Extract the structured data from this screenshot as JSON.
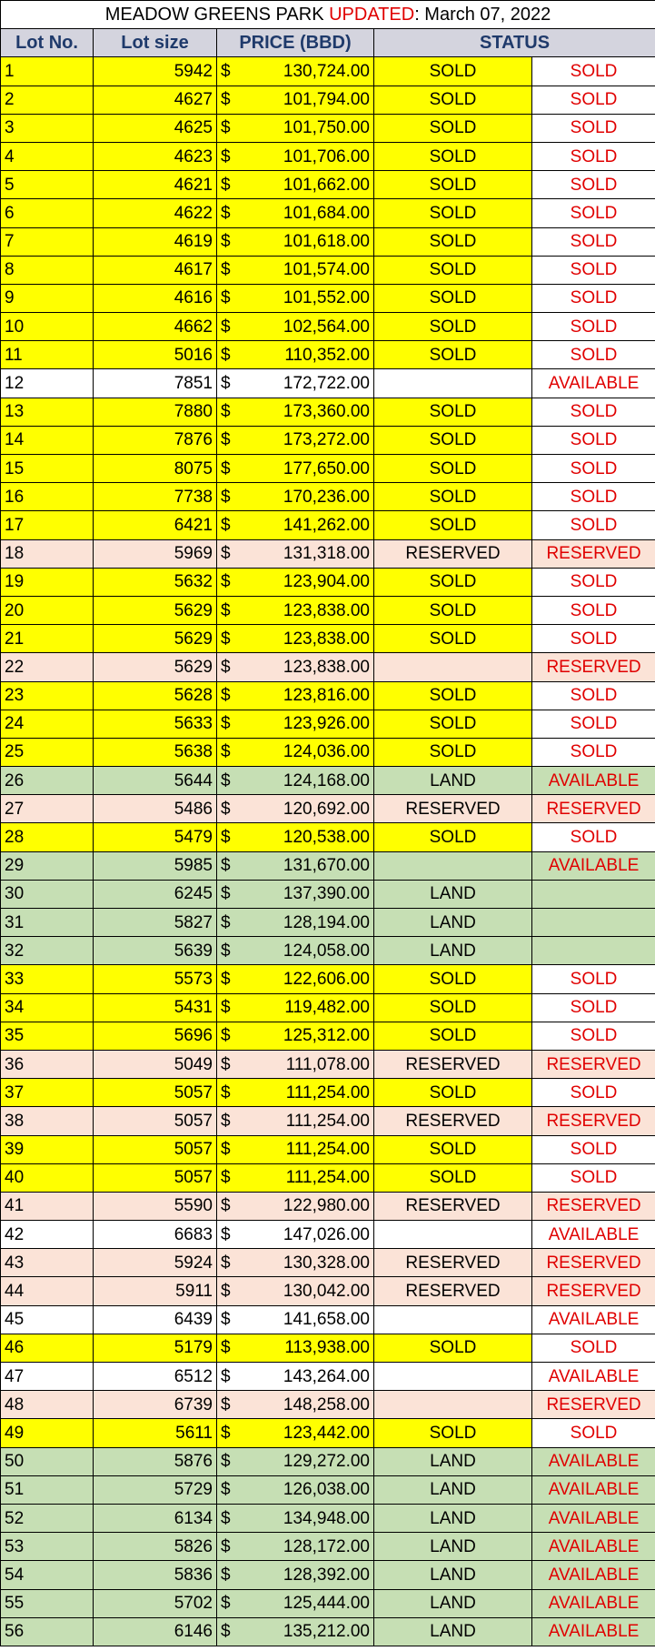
{
  "title": {
    "prefix": "MEADOW GREENS PARK ",
    "updated_word": "UPDATED",
    "suffix": ": March 07, 2022"
  },
  "headers": {
    "lot_no": "Lot No.",
    "lot_size": "Lot size",
    "price": "PRICE (BBD)",
    "status": "STATUS"
  },
  "currency_symbol": "$",
  "colors": {
    "sold_yellow": "#ffff00",
    "reserved_pink": "#fbe3d7",
    "land_green": "#c6dfb4",
    "available_white": "#ffffff",
    "status_red": "#e00000",
    "header_gray": "#d4d4de",
    "header_text_navy": "#1f3a6b"
  },
  "rows": [
    {
      "lot": "1",
      "size": "5942",
      "price": "130,724.00",
      "status": "SOLD",
      "status2": "SOLD",
      "c1": "y",
      "c2": "w"
    },
    {
      "lot": "2",
      "size": "4627",
      "price": "101,794.00",
      "status": "SOLD",
      "status2": "SOLD",
      "c1": "y",
      "c2": "w"
    },
    {
      "lot": "3",
      "size": "4625",
      "price": "101,750.00",
      "status": "SOLD",
      "status2": "SOLD",
      "c1": "y",
      "c2": "w"
    },
    {
      "lot": "4",
      "size": "4623",
      "price": "101,706.00",
      "status": "SOLD",
      "status2": "SOLD",
      "c1": "y",
      "c2": "w"
    },
    {
      "lot": "5",
      "size": "4621",
      "price": "101,662.00",
      "status": "SOLD",
      "status2": "SOLD",
      "c1": "y",
      "c2": "w"
    },
    {
      "lot": "6",
      "size": "4622",
      "price": "101,684.00",
      "status": "SOLD",
      "status2": "SOLD",
      "c1": "y",
      "c2": "w"
    },
    {
      "lot": "7",
      "size": "4619",
      "price": "101,618.00",
      "status": "SOLD",
      "status2": "SOLD",
      "c1": "y",
      "c2": "w"
    },
    {
      "lot": "8",
      "size": "4617",
      "price": "101,574.00",
      "status": "SOLD",
      "status2": "SOLD",
      "c1": "y",
      "c2": "w"
    },
    {
      "lot": "9",
      "size": "4616",
      "price": "101,552.00",
      "status": "SOLD",
      "status2": "SOLD",
      "c1": "y",
      "c2": "w"
    },
    {
      "lot": "10",
      "size": "4662",
      "price": "102,564.00",
      "status": "SOLD",
      "status2": "SOLD",
      "c1": "y",
      "c2": "w"
    },
    {
      "lot": "11",
      "size": "5016",
      "price": "110,352.00",
      "status": "SOLD",
      "status2": "SOLD",
      "c1": "y",
      "c2": "w"
    },
    {
      "lot": "12",
      "size": "7851",
      "price": "172,722.00",
      "status": "",
      "status2": "AVAILABLE",
      "c1": "w",
      "c2": "w"
    },
    {
      "lot": "13",
      "size": "7880",
      "price": "173,360.00",
      "status": "SOLD",
      "status2": "SOLD",
      "c1": "y",
      "c2": "w"
    },
    {
      "lot": "14",
      "size": "7876",
      "price": "173,272.00",
      "status": "SOLD",
      "status2": "SOLD",
      "c1": "y",
      "c2": "w"
    },
    {
      "lot": "15",
      "size": "8075",
      "price": "177,650.00",
      "status": "SOLD",
      "status2": "SOLD",
      "c1": "y",
      "c2": "w"
    },
    {
      "lot": "16",
      "size": "7738",
      "price": "170,236.00",
      "status": "SOLD",
      "status2": "SOLD",
      "c1": "y",
      "c2": "w"
    },
    {
      "lot": "17",
      "size": "6421",
      "price": "141,262.00",
      "status": "SOLD",
      "status2": "SOLD",
      "c1": "y",
      "c2": "w"
    },
    {
      "lot": "18",
      "size": "5969",
      "price": "131,318.00",
      "status": "RESERVED",
      "status2": "RESERVED",
      "c1": "p",
      "c2": "p"
    },
    {
      "lot": "19",
      "size": "5632",
      "price": "123,904.00",
      "status": "SOLD",
      "status2": "SOLD",
      "c1": "y",
      "c2": "w"
    },
    {
      "lot": "20",
      "size": "5629",
      "price": "123,838.00",
      "status": "SOLD",
      "status2": "SOLD",
      "c1": "y",
      "c2": "w"
    },
    {
      "lot": "21",
      "size": "5629",
      "price": "123,838.00",
      "status": "SOLD",
      "status2": "SOLD",
      "c1": "y",
      "c2": "w"
    },
    {
      "lot": "22",
      "size": "5629",
      "price": "123,838.00",
      "status": "",
      "status2": "RESERVED",
      "c1": "p",
      "c2": "p"
    },
    {
      "lot": "23",
      "size": "5628",
      "price": "123,816.00",
      "status": "SOLD",
      "status2": "SOLD",
      "c1": "y",
      "c2": "w"
    },
    {
      "lot": "24",
      "size": "5633",
      "price": "123,926.00",
      "status": "SOLD",
      "status2": "SOLD",
      "c1": "y",
      "c2": "w"
    },
    {
      "lot": "25",
      "size": "5638",
      "price": "124,036.00",
      "status": "SOLD",
      "status2": "SOLD",
      "c1": "y",
      "c2": "w"
    },
    {
      "lot": "26",
      "size": "5644",
      "price": "124,168.00",
      "status": "LAND",
      "status2": "AVAILABLE",
      "c1": "g",
      "c2": "g"
    },
    {
      "lot": "27",
      "size": "5486",
      "price": "120,692.00",
      "status": "RESERVED",
      "status2": "RESERVED",
      "c1": "p",
      "c2": "p"
    },
    {
      "lot": "28",
      "size": "5479",
      "price": "120,538.00",
      "status": "SOLD",
      "status2": "SOLD",
      "c1": "y",
      "c2": "w"
    },
    {
      "lot": "29",
      "size": "5985",
      "price": "131,670.00",
      "status": "",
      "status2": "AVAILABLE",
      "c1": "g",
      "c2": "g"
    },
    {
      "lot": "30",
      "size": "6245",
      "price": "137,390.00",
      "status": "LAND",
      "status2": "",
      "c1": "g",
      "c2": "g"
    },
    {
      "lot": "31",
      "size": "5827",
      "price": "128,194.00",
      "status": "LAND",
      "status2": "",
      "c1": "g",
      "c2": "g"
    },
    {
      "lot": "32",
      "size": "5639",
      "price": "124,058.00",
      "status": "LAND",
      "status2": "",
      "c1": "g",
      "c2": "g"
    },
    {
      "lot": "33",
      "size": "5573",
      "price": "122,606.00",
      "status": "SOLD",
      "status2": "SOLD",
      "c1": "y",
      "c2": "w"
    },
    {
      "lot": "34",
      "size": "5431",
      "price": "119,482.00",
      "status": "SOLD",
      "status2": "SOLD",
      "c1": "y",
      "c2": "w"
    },
    {
      "lot": "35",
      "size": "5696",
      "price": "125,312.00",
      "status": "SOLD",
      "status2": "SOLD",
      "c1": "y",
      "c2": "w"
    },
    {
      "lot": "36",
      "size": "5049",
      "price": "111,078.00",
      "status": "RESERVED",
      "status2": "RESERVED",
      "c1": "p",
      "c2": "p"
    },
    {
      "lot": "37",
      "size": "5057",
      "price": "111,254.00",
      "status": "SOLD",
      "status2": "SOLD",
      "c1": "y",
      "c2": "w"
    },
    {
      "lot": "38",
      "size": "5057",
      "price": "111,254.00",
      "status": "RESERVED",
      "status2": "RESERVED",
      "c1": "p",
      "c2": "p"
    },
    {
      "lot": "39",
      "size": "5057",
      "price": "111,254.00",
      "status": "SOLD",
      "status2": "SOLD",
      "c1": "y",
      "c2": "w"
    },
    {
      "lot": "40",
      "size": "5057",
      "price": "111,254.00",
      "status": "SOLD",
      "status2": "SOLD",
      "c1": "y",
      "c2": "w"
    },
    {
      "lot": "41",
      "size": "5590",
      "price": "122,980.00",
      "status": "RESERVED",
      "status2": "RESERVED",
      "c1": "p",
      "c2": "p"
    },
    {
      "lot": "42",
      "size": "6683",
      "price": "147,026.00",
      "status": "",
      "status2": "AVAILABLE",
      "c1": "w",
      "c2": "w"
    },
    {
      "lot": "43",
      "size": "5924",
      "price": "130,328.00",
      "status": "RESERVED",
      "status2": "RESERVED",
      "c1": "p",
      "c2": "p"
    },
    {
      "lot": "44",
      "size": "5911",
      "price": "130,042.00",
      "status": "RESERVED",
      "status2": "RESERVED",
      "c1": "p",
      "c2": "p"
    },
    {
      "lot": "45",
      "size": "6439",
      "price": "141,658.00",
      "status": "",
      "status2": "AVAILABLE",
      "c1": "w",
      "c2": "w"
    },
    {
      "lot": "46",
      "size": "5179",
      "price": "113,938.00",
      "status": "SOLD",
      "status2": "SOLD",
      "c1": "y",
      "c2": "w"
    },
    {
      "lot": "47",
      "size": "6512",
      "price": "143,264.00",
      "status": "",
      "status2": "AVAILABLE",
      "c1": "w",
      "c2": "w"
    },
    {
      "lot": "48",
      "size": "6739",
      "price": "148,258.00",
      "status": "",
      "status2": "RESERVED",
      "c1": "p",
      "c2": "p"
    },
    {
      "lot": "49",
      "size": "5611",
      "price": "123,442.00",
      "status": "SOLD",
      "status2": "SOLD",
      "c1": "y",
      "c2": "w"
    },
    {
      "lot": "50",
      "size": "5876",
      "price": "129,272.00",
      "status": "LAND",
      "status2": "AVAILABLE",
      "c1": "g",
      "c2": "g"
    },
    {
      "lot": "51",
      "size": "5729",
      "price": "126,038.00",
      "status": "LAND",
      "status2": "AVAILABLE",
      "c1": "g",
      "c2": "g"
    },
    {
      "lot": "52",
      "size": "6134",
      "price": "134,948.00",
      "status": "LAND",
      "status2": "AVAILABLE",
      "c1": "g",
      "c2": "g"
    },
    {
      "lot": "53",
      "size": "5826",
      "price": "128,172.00",
      "status": "LAND",
      "status2": "AVAILABLE",
      "c1": "g",
      "c2": "g"
    },
    {
      "lot": "54",
      "size": "5836",
      "price": "128,392.00",
      "status": "LAND",
      "status2": "AVAILABLE",
      "c1": "g",
      "c2": "g"
    },
    {
      "lot": "55",
      "size": "5702",
      "price": "125,444.00",
      "status": "LAND",
      "status2": "AVAILABLE",
      "c1": "g",
      "c2": "g"
    },
    {
      "lot": "56",
      "size": "6146",
      "price": "135,212.00",
      "status": "LAND",
      "status2": "AVAILABLE",
      "c1": "g",
      "c2": "g"
    }
  ]
}
